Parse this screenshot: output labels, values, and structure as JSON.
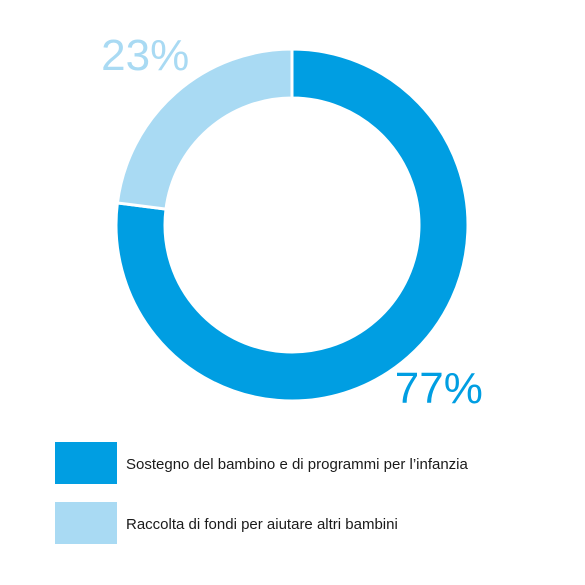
{
  "chart_data": {
    "type": "donut",
    "categories": [
      "Sostegno del bambino e di programmi per l’infanzia",
      "Raccolta di fondi per aiutare altri bambini"
    ],
    "values": [
      77,
      23
    ],
    "value_labels": [
      "77%",
      "23%"
    ],
    "colors": [
      "#009ee2",
      "#a9daf3"
    ]
  }
}
